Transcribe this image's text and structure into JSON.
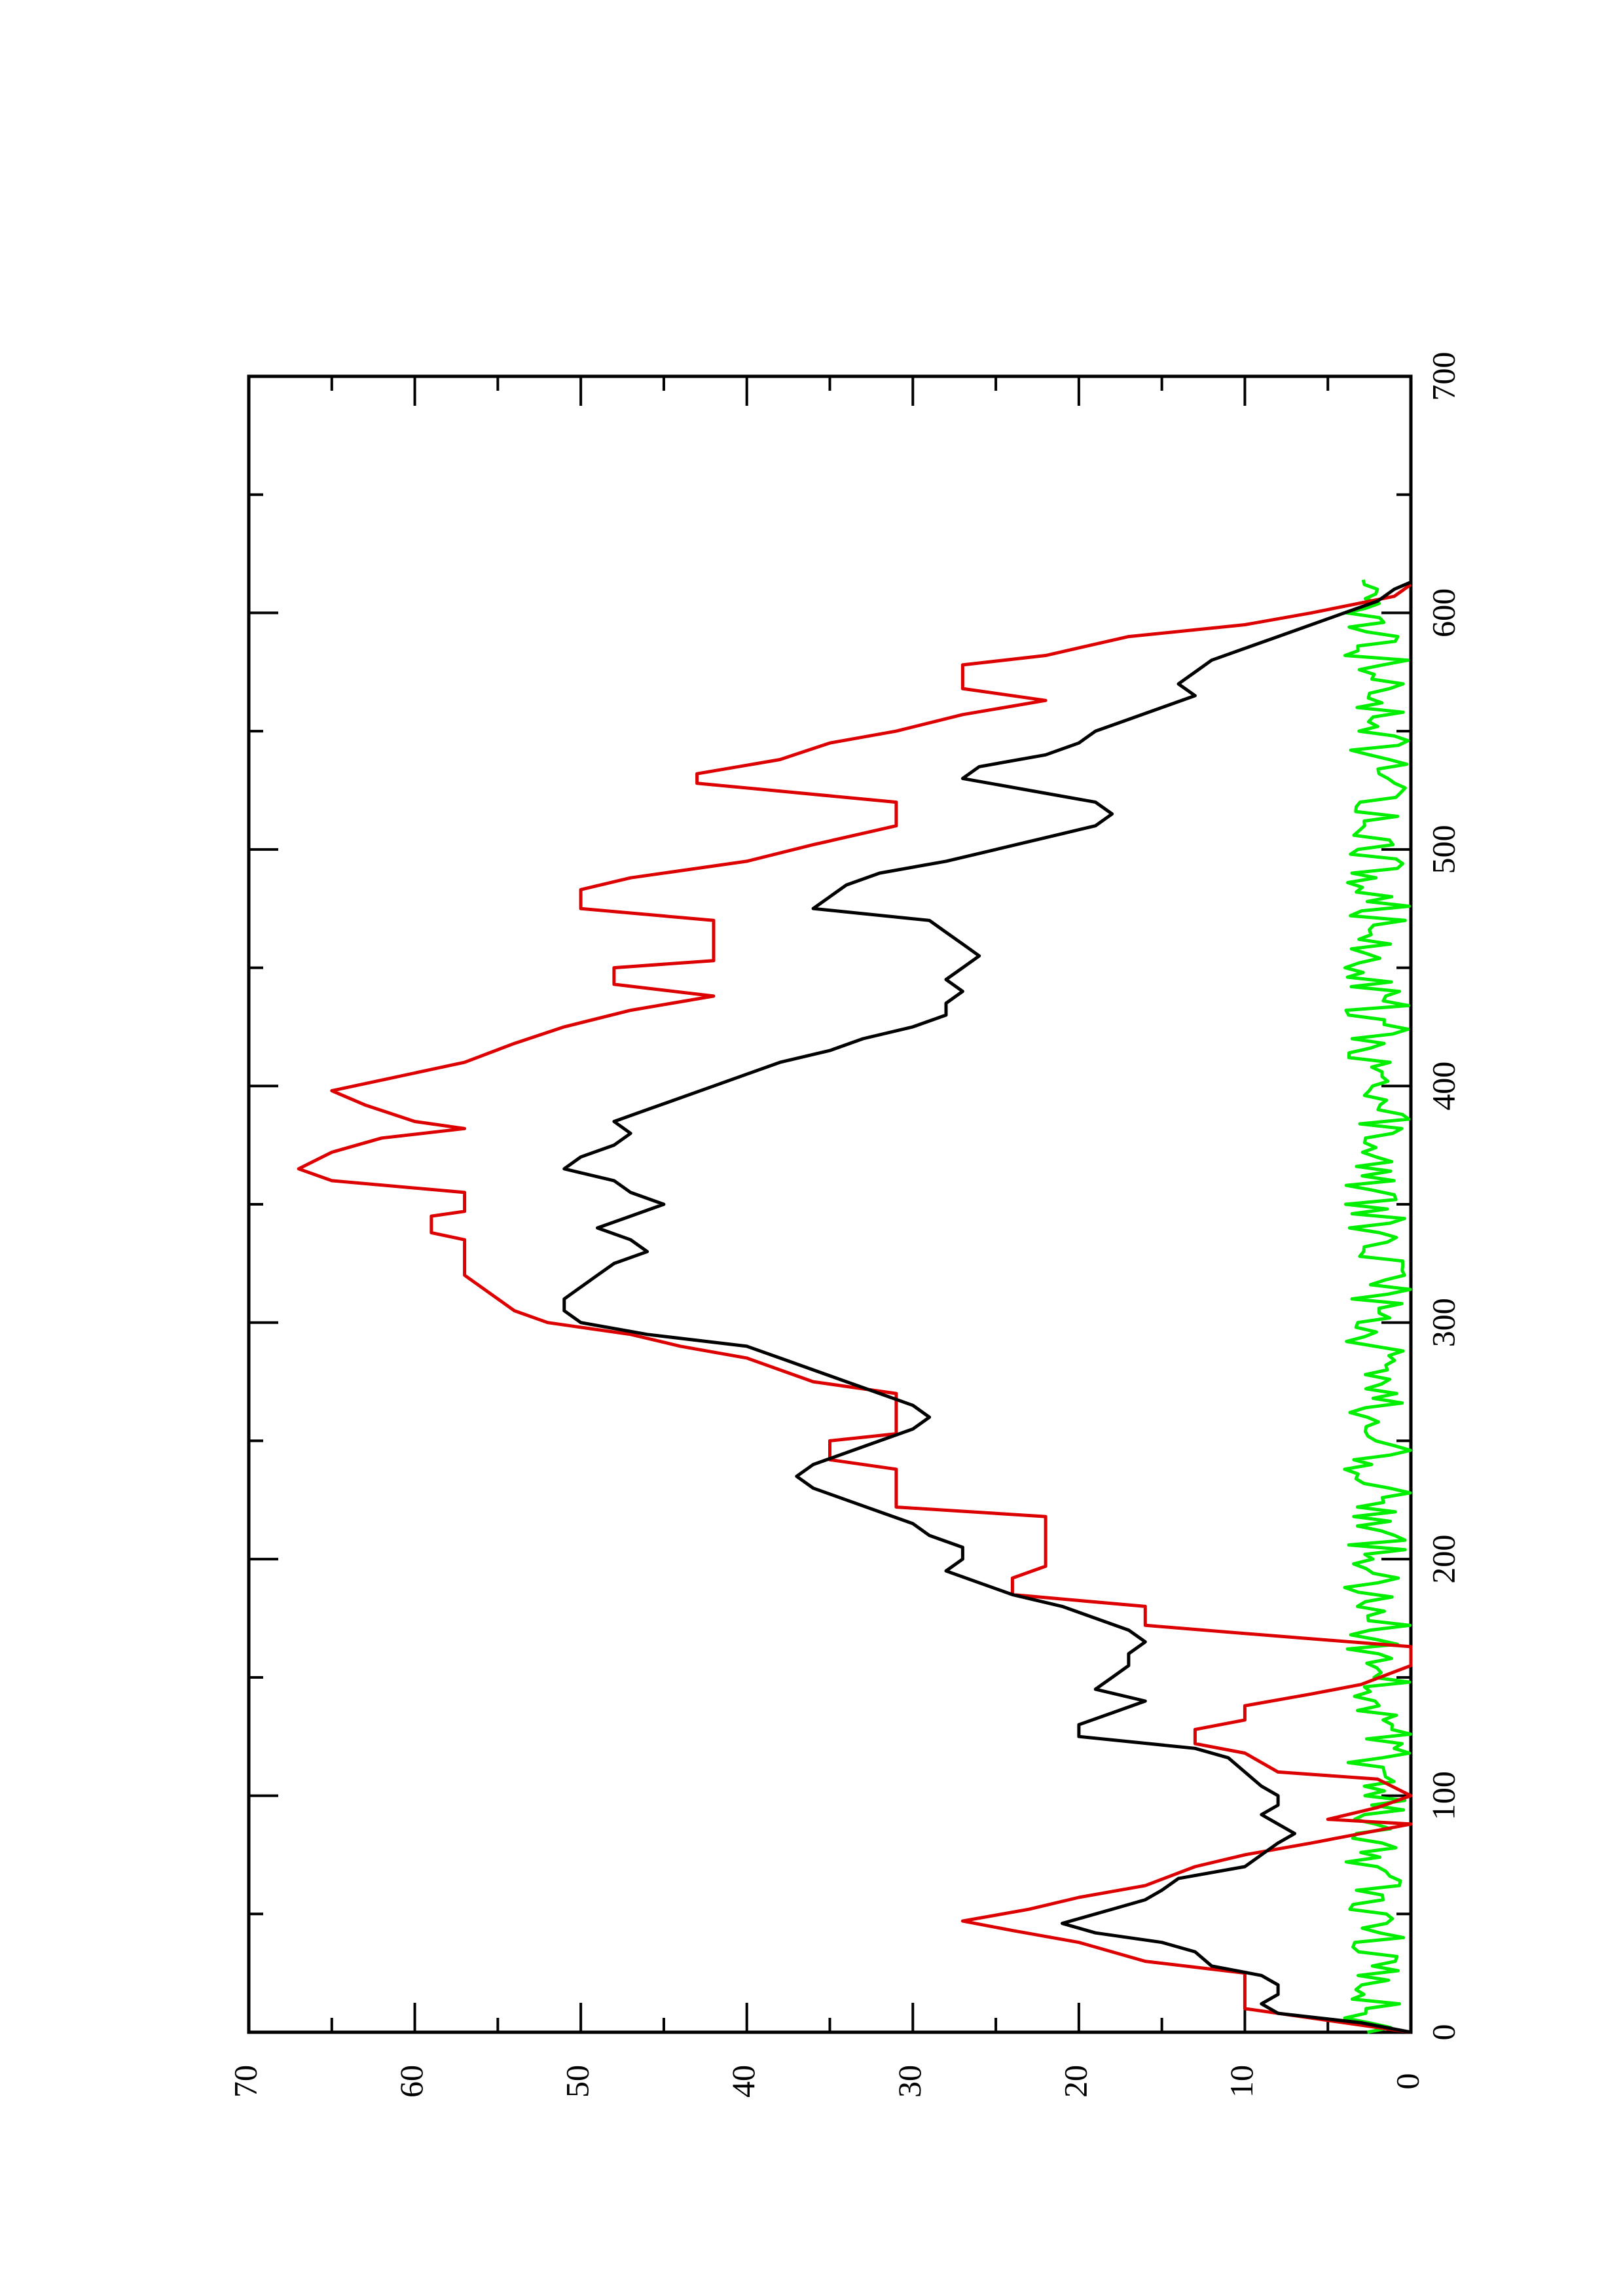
{
  "chart_data": {
    "type": "line",
    "orientation": "rotated 90 degrees counter-clockwise (x axis runs along the right edge, y axis along the bottom edge)",
    "title": "",
    "xlabel": "",
    "ylabel": "",
    "xlim": [
      0,
      700
    ],
    "ylim": [
      0,
      70
    ],
    "x_major_ticks": [
      0,
      100,
      200,
      300,
      400,
      500,
      600,
      700
    ],
    "x_minor_ticks": [
      50,
      150,
      250,
      350,
      450,
      550,
      650
    ],
    "y_major_ticks": [
      0,
      10,
      20,
      30,
      40,
      50,
      60,
      70
    ],
    "y_minor_ticks": [
      5,
      15,
      25,
      35,
      45,
      55,
      65
    ],
    "x_tick_labels": [
      "0",
      "100",
      "200",
      "300",
      "400",
      "500",
      "600",
      "700"
    ],
    "y_tick_labels": [
      "0",
      "10",
      "20",
      "30",
      "40",
      "50",
      "60",
      "70"
    ],
    "grid": false,
    "legend": "none",
    "series": [
      {
        "color": "#dd0000",
        "style": "step",
        "points": [
          [
            0,
            0
          ],
          [
            5,
            5
          ],
          [
            10,
            10
          ],
          [
            25,
            10
          ],
          [
            30,
            16
          ],
          [
            38,
            20
          ],
          [
            43,
            24
          ],
          [
            47,
            27
          ],
          [
            52,
            23
          ],
          [
            57,
            20
          ],
          [
            62,
            16
          ],
          [
            70,
            13
          ],
          [
            75,
            10
          ],
          [
            80,
            6
          ],
          [
            84,
            3
          ],
          [
            88,
            0
          ],
          [
            90,
            5
          ],
          [
            95,
            2
          ],
          [
            100,
            0
          ],
          [
            107,
            2
          ],
          [
            110,
            8
          ],
          [
            118,
            10
          ],
          [
            122,
            13
          ],
          [
            128,
            13
          ],
          [
            132,
            10
          ],
          [
            138,
            10
          ],
          [
            143,
            6
          ],
          [
            147,
            3
          ],
          [
            155,
            0
          ],
          [
            163,
            0
          ],
          [
            168,
            9
          ],
          [
            172,
            16
          ],
          [
            180,
            16
          ],
          [
            185,
            24
          ],
          [
            192,
            24
          ],
          [
            197,
            22
          ],
          [
            218,
            22
          ],
          [
            222,
            31
          ],
          [
            238,
            31
          ],
          [
            242,
            35
          ],
          [
            250,
            35
          ],
          [
            253,
            31
          ],
          [
            270,
            31
          ],
          [
            275,
            36
          ],
          [
            285,
            40
          ],
          [
            290,
            44
          ],
          [
            295,
            47
          ],
          [
            300,
            52
          ],
          [
            305,
            54
          ],
          [
            320,
            57
          ],
          [
            335,
            57
          ],
          [
            338,
            59
          ],
          [
            345,
            59
          ],
          [
            347,
            57
          ],
          [
            355,
            57
          ],
          [
            360,
            65
          ],
          [
            365,
            67
          ],
          [
            372,
            65
          ],
          [
            378,
            62
          ],
          [
            382,
            57
          ],
          [
            385,
            60
          ],
          [
            392,
            63
          ],
          [
            398,
            65
          ],
          [
            401,
            63
          ],
          [
            410,
            57
          ],
          [
            418,
            54
          ],
          [
            425,
            51
          ],
          [
            432,
            47
          ],
          [
            438,
            42
          ],
          [
            443,
            48
          ],
          [
            450,
            48
          ],
          [
            453,
            42
          ],
          [
            470,
            42
          ],
          [
            475,
            50
          ],
          [
            483,
            50
          ],
          [
            488,
            47
          ],
          [
            495,
            40
          ],
          [
            502,
            36
          ],
          [
            510,
            31
          ],
          [
            520,
            31
          ],
          [
            528,
            43
          ],
          [
            532,
            43
          ],
          [
            538,
            38
          ],
          [
            545,
            35
          ],
          [
            550,
            31
          ],
          [
            557,
            27
          ],
          [
            563,
            22
          ],
          [
            568,
            27
          ],
          [
            578,
            27
          ],
          [
            582,
            22
          ],
          [
            590,
            17
          ],
          [
            595,
            10
          ],
          [
            600,
            6
          ],
          [
            607,
            1
          ],
          [
            612,
            0
          ]
        ]
      },
      {
        "color": "#000000",
        "style": "line",
        "points": [
          [
            0,
            0
          ],
          [
            4,
            3
          ],
          [
            8,
            8
          ],
          [
            12,
            9
          ],
          [
            16,
            8
          ],
          [
            20,
            8
          ],
          [
            24,
            9
          ],
          [
            28,
            12
          ],
          [
            34,
            13
          ],
          [
            38,
            15
          ],
          [
            42,
            19
          ],
          [
            46,
            21
          ],
          [
            52,
            18
          ],
          [
            56,
            16
          ],
          [
            60,
            15
          ],
          [
            65,
            14
          ],
          [
            70,
            10
          ],
          [
            75,
            9
          ],
          [
            80,
            8
          ],
          [
            84,
            7
          ],
          [
            88,
            8
          ],
          [
            92,
            9
          ],
          [
            96,
            8
          ],
          [
            100,
            8
          ],
          [
            104,
            9
          ],
          [
            110,
            10
          ],
          [
            116,
            11
          ],
          [
            120,
            13
          ],
          [
            125,
            20
          ],
          [
            130,
            20
          ],
          [
            135,
            18
          ],
          [
            140,
            16
          ],
          [
            145,
            19
          ],
          [
            150,
            18
          ],
          [
            155,
            17
          ],
          [
            160,
            17
          ],
          [
            165,
            16
          ],
          [
            170,
            17
          ],
          [
            175,
            19
          ],
          [
            180,
            21
          ],
          [
            185,
            24
          ],
          [
            190,
            26
          ],
          [
            195,
            28
          ],
          [
            200,
            27
          ],
          [
            205,
            27
          ],
          [
            210,
            29
          ],
          [
            215,
            30
          ],
          [
            220,
            32
          ],
          [
            225,
            34
          ],
          [
            230,
            36
          ],
          [
            235,
            37
          ],
          [
            240,
            36
          ],
          [
            245,
            34
          ],
          [
            250,
            32
          ],
          [
            255,
            30
          ],
          [
            260,
            29
          ],
          [
            265,
            30
          ],
          [
            270,
            32
          ],
          [
            275,
            34
          ],
          [
            280,
            36
          ],
          [
            285,
            38
          ],
          [
            290,
            40
          ],
          [
            295,
            46
          ],
          [
            300,
            50
          ],
          [
            305,
            51
          ],
          [
            310,
            51
          ],
          [
            315,
            50
          ],
          [
            320,
            49
          ],
          [
            325,
            48
          ],
          [
            330,
            46
          ],
          [
            335,
            47
          ],
          [
            340,
            49
          ],
          [
            345,
            47
          ],
          [
            350,
            45
          ],
          [
            355,
            47
          ],
          [
            360,
            48
          ],
          [
            365,
            51
          ],
          [
            370,
            50
          ],
          [
            375,
            48
          ],
          [
            380,
            47
          ],
          [
            385,
            48
          ],
          [
            390,
            46
          ],
          [
            395,
            44
          ],
          [
            400,
            42
          ],
          [
            405,
            40
          ],
          [
            410,
            38
          ],
          [
            415,
            35
          ],
          [
            420,
            33
          ],
          [
            425,
            30
          ],
          [
            430,
            28
          ],
          [
            435,
            28
          ],
          [
            440,
            27
          ],
          [
            445,
            28
          ],
          [
            450,
            27
          ],
          [
            455,
            26
          ],
          [
            460,
            27
          ],
          [
            465,
            28
          ],
          [
            470,
            29
          ],
          [
            475,
            36
          ],
          [
            480,
            35
          ],
          [
            485,
            34
          ],
          [
            490,
            32
          ],
          [
            495,
            28
          ],
          [
            500,
            25
          ],
          [
            505,
            22
          ],
          [
            510,
            19
          ],
          [
            515,
            18
          ],
          [
            520,
            19
          ],
          [
            525,
            23
          ],
          [
            530,
            27
          ],
          [
            535,
            26
          ],
          [
            540,
            22
          ],
          [
            545,
            20
          ],
          [
            550,
            19
          ],
          [
            555,
            17
          ],
          [
            560,
            15
          ],
          [
            565,
            13
          ],
          [
            570,
            14
          ],
          [
            575,
            13
          ],
          [
            580,
            12
          ],
          [
            585,
            10
          ],
          [
            590,
            8
          ],
          [
            595,
            6
          ],
          [
            600,
            4
          ],
          [
            605,
            2
          ],
          [
            610,
            1
          ],
          [
            613,
            0
          ]
        ]
      },
      {
        "color": "#00ee00",
        "style": "line",
        "points": "noisy series fluctuating between 0 and 4"
      }
    ]
  }
}
